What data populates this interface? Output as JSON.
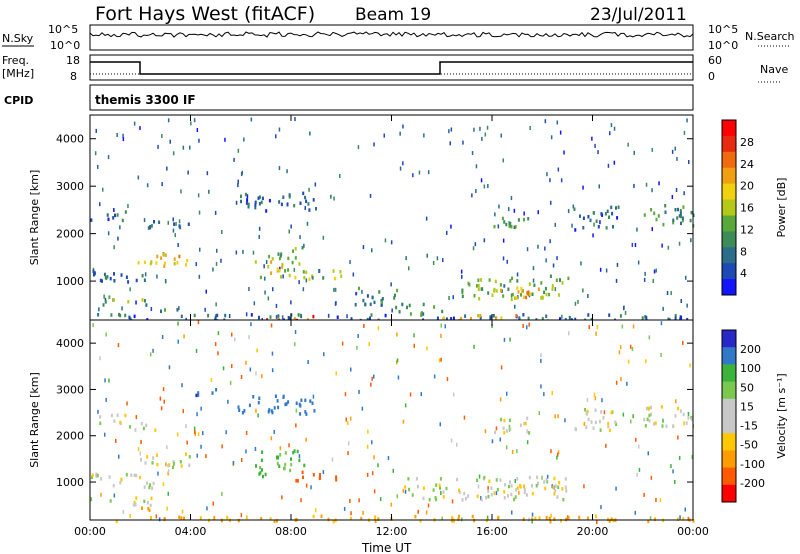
{
  "header": {
    "radar": "Fort Hays West (fitACF)",
    "beam": "Beam 19",
    "date": "23/Jul/2011"
  },
  "summary_panels": {
    "nsky_label": "N.Sky",
    "nsky_ticks": [
      "10^5",
      "10^0"
    ],
    "nsearch_label": "N.Search",
    "nsearch_ticks": [
      "10^5",
      "10^0"
    ],
    "freq_label": "Freq.",
    "freq_unit": "[MHz]",
    "freq_ticks": [
      "18",
      "8"
    ],
    "nave_label": "Nave",
    "nave_ticks": [
      "60",
      "0"
    ],
    "cpid_label": "CPID",
    "cpid_value": "themis 3300 IF"
  },
  "colors": {
    "power": [
      "#1414ff",
      "#1e4ab4",
      "#2a6e8a",
      "#3c8c5a",
      "#58a83a",
      "#b4c818",
      "#f0d010",
      "#f0a010",
      "#f06a10",
      "#e82a10",
      "#ff0000"
    ],
    "velocity": [
      "#ff0000",
      "#ff5a00",
      "#ff9c00",
      "#ffc800",
      "#c8c8c8",
      "#c8c8c8",
      "#7ac850",
      "#3cb43c",
      "#3278c8",
      "#2828c8"
    ]
  },
  "chart_data": [
    {
      "type": "heatmap",
      "title": "",
      "ylabel": "Slant Range [km]",
      "xlabel": "",
      "x_ticks": [
        "00:00",
        "04:00",
        "08:00",
        "12:00",
        "16:00",
        "20:00",
        "00:00"
      ],
      "xlim": [
        0,
        24
      ],
      "ylim": [
        180,
        4500
      ],
      "y_ticks": [
        "1000",
        "2000",
        "3000",
        "4000"
      ],
      "colorbar": {
        "label": "Power [dB]",
        "ticks": [
          "4",
          "8",
          "12",
          "16",
          "20",
          "24",
          "28"
        ],
        "range": [
          0,
          30
        ]
      },
      "regions": [
        {
          "t0": 0.0,
          "t1": 1.5,
          "r0": 2300,
          "r1": 2500,
          "v": 6
        },
        {
          "t0": 1.3,
          "t1": 2.8,
          "r0": 2150,
          "r1": 2300,
          "v": 6
        },
        {
          "t0": 1.8,
          "t1": 4.0,
          "r0": 1350,
          "r1": 1650,
          "v": 18
        },
        {
          "t0": 0.0,
          "t1": 2.5,
          "r0": 1000,
          "r1": 1250,
          "v": 6
        },
        {
          "t0": 0.3,
          "t1": 2.5,
          "r0": 530,
          "r1": 700,
          "v": 12
        },
        {
          "t0": 2.0,
          "t1": 3.5,
          "r0": 400,
          "r1": 480,
          "v": 10
        },
        {
          "t0": 3.2,
          "t1": 4.0,
          "r0": 2100,
          "r1": 2300,
          "v": 6
        },
        {
          "t0": 5.8,
          "t1": 9.0,
          "r0": 2500,
          "r1": 2900,
          "v": 6
        },
        {
          "t0": 6.8,
          "t1": 8.5,
          "r0": 1500,
          "r1": 1750,
          "v": 12
        },
        {
          "t0": 6.5,
          "t1": 8.5,
          "r0": 1100,
          "r1": 1450,
          "v": 16
        },
        {
          "t0": 8.0,
          "t1": 10.0,
          "r0": 1050,
          "r1": 1250,
          "v": 14
        },
        {
          "t0": 10.5,
          "t1": 12.5,
          "r0": 500,
          "r1": 900,
          "v": 8
        },
        {
          "t0": 12.0,
          "t1": 14.0,
          "r0": 300,
          "r1": 550,
          "v": 10
        },
        {
          "t0": 14.5,
          "t1": 19.0,
          "r0": 650,
          "r1": 1150,
          "v": 12
        },
        {
          "t0": 16.3,
          "t1": 18.0,
          "r0": 650,
          "r1": 950,
          "v": 20
        },
        {
          "t0": 16.0,
          "t1": 17.5,
          "r0": 2100,
          "r1": 2450,
          "v": 10
        },
        {
          "t0": 19.2,
          "t1": 21.0,
          "r0": 2100,
          "r1": 2600,
          "v": 6
        },
        {
          "t0": 22.0,
          "t1": 24.0,
          "r0": 2200,
          "r1": 2700,
          "v": 10
        },
        {
          "t0": 0.0,
          "t1": 24.0,
          "r0": 180,
          "r1": 330,
          "v": 6
        },
        {
          "t0": 7.0,
          "t1": 9.0,
          "r0": 180,
          "r1": 320,
          "v": 24
        },
        {
          "t0": 14.0,
          "t1": 17.0,
          "r0": 180,
          "r1": 320,
          "v": 18
        }
      ]
    },
    {
      "type": "heatmap",
      "title": "",
      "ylabel": "Slant Range [km]",
      "xlabel": "Time UT",
      "x_ticks": [
        "00:00",
        "04:00",
        "08:00",
        "12:00",
        "16:00",
        "20:00",
        "00:00"
      ],
      "xlim": [
        0,
        24
      ],
      "ylim": [
        180,
        4500
      ],
      "y_ticks": [
        "1000",
        "2000",
        "3000",
        "4000"
      ],
      "colorbar": {
        "label": "Velocity [m s⁻¹]",
        "ticks": [
          "-200",
          "-100",
          "-50",
          "-15",
          "15",
          "50",
          "100",
          "200"
        ],
        "range": [
          -250,
          250
        ]
      },
      "regions": [
        {
          "t0": 0.0,
          "t1": 1.5,
          "r0": 2300,
          "r1": 2500,
          "v": 0
        },
        {
          "t0": 1.3,
          "t1": 2.8,
          "r0": 2150,
          "r1": 2300,
          "v": 0
        },
        {
          "t0": 1.8,
          "t1": 4.0,
          "r0": 1350,
          "r1": 1650,
          "v": 0
        },
        {
          "t0": 0.0,
          "t1": 2.5,
          "r0": 900,
          "r1": 1250,
          "v": 0
        },
        {
          "t0": 0.3,
          "t1": 2.5,
          "r0": 530,
          "r1": 700,
          "v": 0
        },
        {
          "t0": 2.0,
          "t1": 3.5,
          "r0": 400,
          "r1": 480,
          "v": -80
        },
        {
          "t0": 4.0,
          "t1": 5.0,
          "r0": 2900,
          "r1": 3100,
          "v": 180
        },
        {
          "t0": 5.8,
          "t1": 9.0,
          "r0": 2500,
          "r1": 2900,
          "v": 160
        },
        {
          "t0": 6.8,
          "t1": 8.5,
          "r0": 1500,
          "r1": 1750,
          "v": 60
        },
        {
          "t0": 6.5,
          "t1": 8.5,
          "r0": 1150,
          "r1": 1450,
          "v": 70
        },
        {
          "t0": 8.0,
          "t1": 10.0,
          "r0": 1050,
          "r1": 1250,
          "v": -150
        },
        {
          "t0": 12.5,
          "t1": 19.0,
          "r0": 650,
          "r1": 1150,
          "v": 0
        },
        {
          "t0": 16.0,
          "t1": 17.5,
          "r0": 2100,
          "r1": 2450,
          "v": 0
        },
        {
          "t0": 19.2,
          "t1": 21.0,
          "r0": 2100,
          "r1": 2600,
          "v": 0
        },
        {
          "t0": 22.0,
          "t1": 24.0,
          "r0": 2200,
          "r1": 2700,
          "v": 0
        },
        {
          "t0": 0.0,
          "t1": 24.0,
          "r0": 180,
          "r1": 300,
          "v": -60
        }
      ]
    }
  ]
}
